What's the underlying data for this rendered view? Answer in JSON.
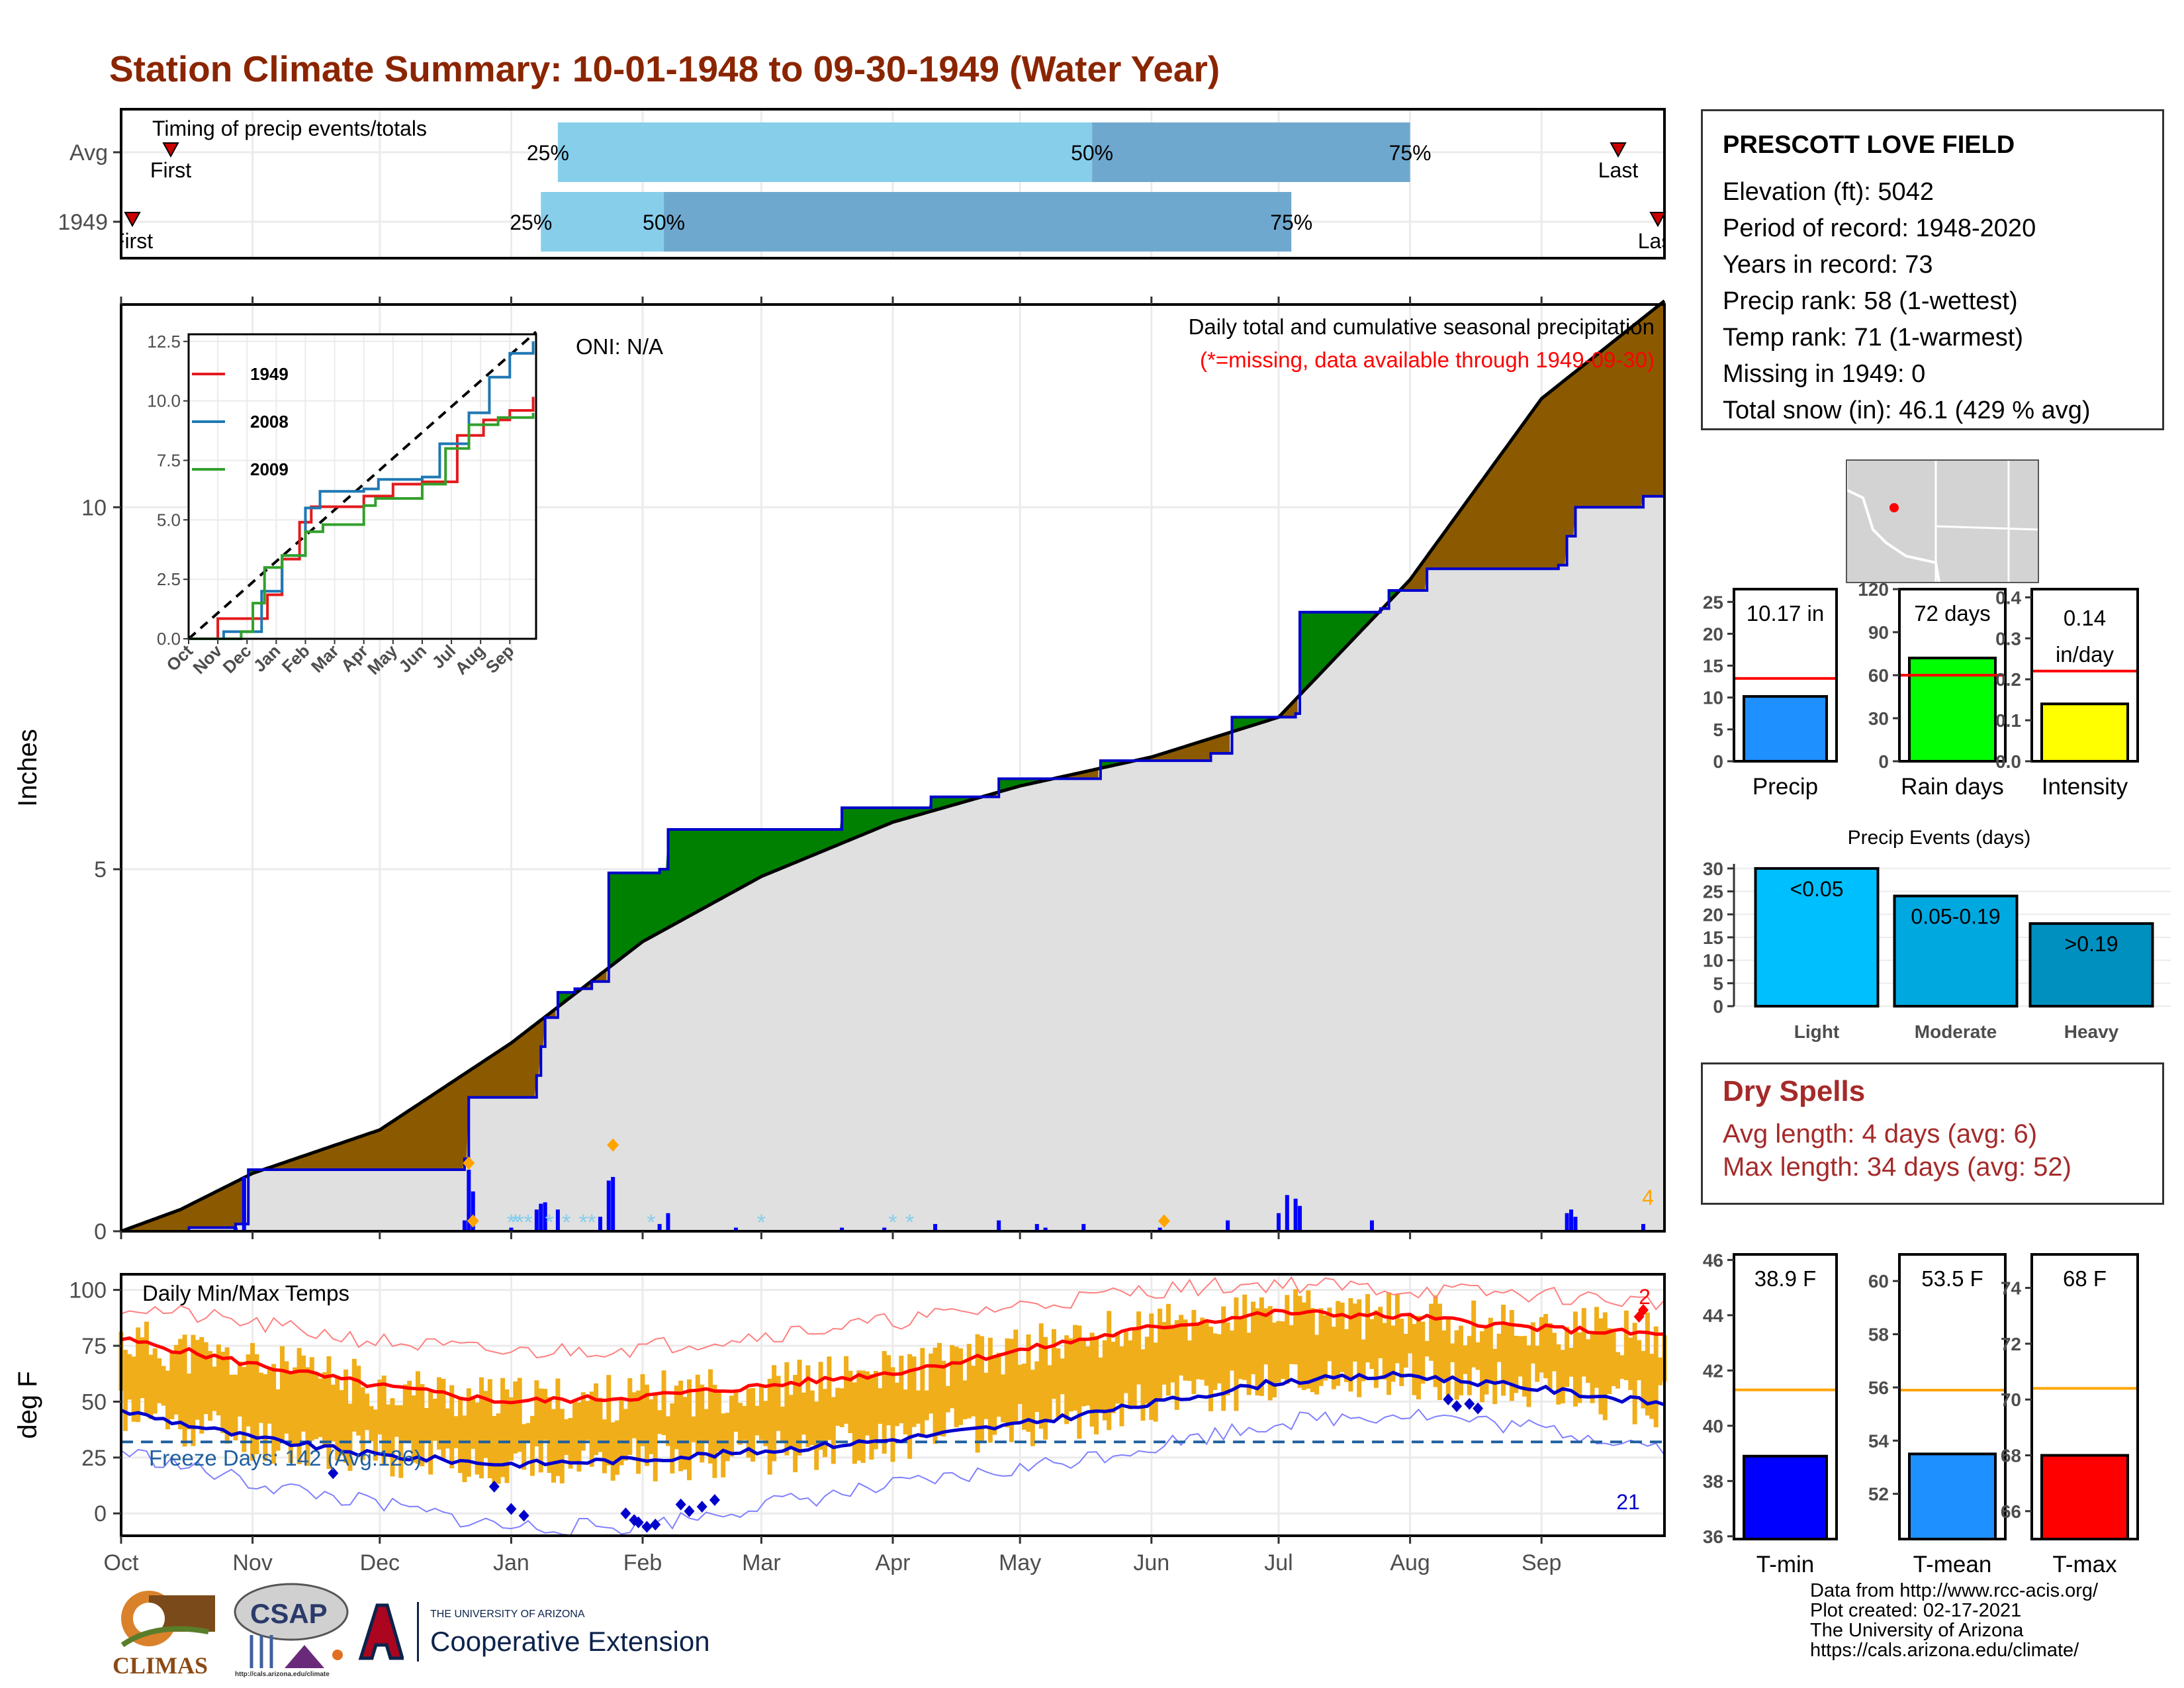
{
  "title": "Station Climate Summary: 10-01-1948 to 09-30-1949 (Water Year)",
  "station": {
    "name": "PRESCOTT LOVE FIELD",
    "lines": [
      "Elevation (ft): 5042",
      "Period of record: 1948-2020",
      "Years in record: 73",
      "Precip rank: 58 (1-wettest)",
      "Temp rank: 71 (1-warmest)",
      "Missing in 1949: 0",
      "Total snow (in): 46.1 (429 % avg)"
    ]
  },
  "dry_spells": {
    "title": "Dry Spells",
    "lines": [
      "Avg length: 4 days (avg: 6)",
      "Max length: 34 days (avg: 52)"
    ]
  },
  "footer": {
    "lines": [
      "Data from http://www.rcc-acis.org/",
      "Plot created: 02-17-2021",
      "The University of Arizona",
      "https://cals.arizona.edu/climate/"
    ]
  },
  "logos": {
    "climas": "CLIMAS",
    "csap": "CSAP",
    "csap_url": "http://cals.arizona.edu/climate",
    "ua_small": "THE UNIVERSITY OF ARIZONA",
    "ua_big": "Cooperative Extension"
  },
  "chart_data": [
    {
      "id": "timing",
      "type": "bar",
      "title": "Timing of precip events/totals",
      "rows": [
        {
          "label": "Avg",
          "first": "First",
          "last": "Last",
          "p25": "Jan 12",
          "p50": "May 18",
          "p75": "Aug 1",
          "pct_labels": [
            "25%",
            "50%",
            "75%"
          ]
        },
        {
          "label": "1949",
          "first": "First",
          "last": "Last",
          "p25": "Jan 8",
          "p50": "Feb 6",
          "p75": "Jul 4",
          "pct_labels": [
            "25%",
            "50%",
            "75%"
          ]
        }
      ],
      "colors": {
        "light": "#87ceeb",
        "dark": "#6fa8cf",
        "marker": "#cc0000"
      }
    },
    {
      "id": "cumulative-precip",
      "type": "area",
      "title": "Daily total and cumulative seasonal precipitation",
      "subtitle": "(*=missing, data available through 1949-09-30)",
      "annotation": "ONI: N/A",
      "ylabel": "Inches",
      "ylim": [
        0,
        12.8
      ],
      "yticks": [
        0,
        5,
        10
      ],
      "xlim": [
        "1948-10-01",
        "1949-09-30"
      ],
      "xticks": [
        "Oct",
        "Nov",
        "Dec",
        "Jan",
        "Feb",
        "Mar",
        "Apr",
        "May",
        "Jun",
        "Jul",
        "Aug",
        "Sep"
      ],
      "snow_days_label": "4",
      "series": [
        {
          "name": "observed cumulative",
          "color": "#0000cc",
          "points": [
            [
              "1948-10-01",
              0
            ],
            [
              "1948-10-17",
              0.05
            ],
            [
              "1948-10-28",
              0.1
            ],
            [
              "1948-10-31",
              0.85
            ],
            [
              "1948-11-15",
              0.85
            ],
            [
              "1948-12-01",
              0.85
            ],
            [
              "1948-12-20",
              0.85
            ],
            [
              "1948-12-21",
              1.0
            ],
            [
              "1948-12-22",
              1.85
            ],
            [
              "1949-01-05",
              1.85
            ],
            [
              "1949-01-07",
              2.15
            ],
            [
              "1949-01-08",
              2.55
            ],
            [
              "1949-01-09",
              2.95
            ],
            [
              "1949-01-12",
              3.3
            ],
            [
              "1949-01-16",
              3.35
            ],
            [
              "1949-01-20",
              3.45
            ],
            [
              "1949-01-24",
              4.95
            ],
            [
              "1949-02-05",
              5.0
            ],
            [
              "1949-02-07",
              5.55
            ],
            [
              "1949-02-20",
              5.55
            ],
            [
              "1949-03-01",
              5.55
            ],
            [
              "1949-03-20",
              5.85
            ],
            [
              "1949-04-10",
              6.0
            ],
            [
              "1949-04-26",
              6.25
            ],
            [
              "1949-05-20",
              6.5
            ],
            [
              "1949-06-15",
              6.6
            ],
            [
              "1949-06-20",
              7.1
            ],
            [
              "1949-07-05",
              7.15
            ],
            [
              "1949-07-06",
              8.55
            ],
            [
              "1949-07-25",
              8.6
            ],
            [
              "1949-07-27",
              8.85
            ],
            [
              "1949-08-05",
              9.15
            ],
            [
              "1949-09-05",
              9.2
            ],
            [
              "1949-09-07",
              9.6
            ],
            [
              "1949-09-09",
              10.0
            ],
            [
              "1949-09-25",
              10.15
            ],
            [
              "1949-09-30",
              10.17
            ]
          ]
        },
        {
          "name": "average cumulative",
          "color": "#000000",
          "points": [
            [
              "1948-10-01",
              0
            ],
            [
              "1948-10-15",
              0.3
            ],
            [
              "1948-11-01",
              0.8
            ],
            [
              "1948-12-01",
              1.4
            ],
            [
              "1949-01-01",
              2.6
            ],
            [
              "1949-02-01",
              4.0
            ],
            [
              "1949-03-01",
              4.9
            ],
            [
              "1949-04-01",
              5.65
            ],
            [
              "1949-05-01",
              6.15
            ],
            [
              "1949-06-01",
              6.55
            ],
            [
              "1949-07-01",
              7.1
            ],
            [
              "1949-08-01",
              9.0
            ],
            [
              "1949-09-01",
              11.5
            ],
            [
              "1949-09-30",
              12.85
            ]
          ]
        }
      ],
      "fill_colors": {
        "below_avg": "#8b5a00",
        "above_avg": "#008000",
        "base": "#e0e0e0"
      },
      "daily_bars": [
        [
          "1948-10-28",
          0.05
        ],
        [
          "1948-10-30",
          0.75
        ],
        [
          "1948-12-21",
          0.15
        ],
        [
          "1948-12-22",
          0.85
        ],
        [
          "1948-12-23",
          0.55
        ],
        [
          "1949-01-01",
          0.05
        ],
        [
          "1949-01-07",
          0.3
        ],
        [
          "1949-01-08",
          0.38
        ],
        [
          "1949-01-09",
          0.4
        ],
        [
          "1949-01-12",
          0.3
        ],
        [
          "1949-01-22",
          0.2
        ],
        [
          "1949-01-24",
          0.7
        ],
        [
          "1949-01-25",
          0.75
        ],
        [
          "1949-02-05",
          0.1
        ],
        [
          "1949-02-07",
          0.25
        ],
        [
          "1949-02-23",
          0.05
        ],
        [
          "1949-03-20",
          0.05
        ],
        [
          "1949-03-30",
          0.05
        ],
        [
          "1949-04-11",
          0.1
        ],
        [
          "1949-04-26",
          0.15
        ],
        [
          "1949-05-05",
          0.1
        ],
        [
          "1949-05-07",
          0.05
        ],
        [
          "1949-05-16",
          0.1
        ],
        [
          "1949-06-03",
          0.05
        ],
        [
          "1949-06-19",
          0.15
        ],
        [
          "1949-07-01",
          0.25
        ],
        [
          "1949-07-03",
          0.5
        ],
        [
          "1949-07-05",
          0.45
        ],
        [
          "1949-07-06",
          0.35
        ],
        [
          "1949-07-23",
          0.15
        ],
        [
          "1949-09-07",
          0.25
        ],
        [
          "1949-09-08",
          0.3
        ],
        [
          "1949-09-09",
          0.2
        ],
        [
          "1949-09-25",
          0.1
        ]
      ]
    },
    {
      "id": "inset-cumulative",
      "type": "line",
      "ylim": [
        0,
        12.8
      ],
      "yticks": [
        0.0,
        2.5,
        5.0,
        7.5,
        10.0,
        12.5
      ],
      "ytick_labels": [
        "0.0",
        "2.5",
        "5.0",
        "7.5",
        "10.0",
        "12.5"
      ],
      "xticks": [
        "Oct",
        "Nov",
        "Dec",
        "Jan",
        "Feb",
        "Mar",
        "Apr",
        "May",
        "Jun",
        "Jul",
        "Aug",
        "Sep"
      ],
      "series": [
        {
          "name": "1949",
          "color": "#e31a1c",
          "points": [
            [
              0,
              0
            ],
            [
              1,
              0.85
            ],
            [
              2,
              0.85
            ],
            [
              2.7,
              1.85
            ],
            [
              3.2,
              3.35
            ],
            [
              3.8,
              4.9
            ],
            [
              4.2,
              5.55
            ],
            [
              5,
              5.55
            ],
            [
              6,
              6.0
            ],
            [
              7,
              6.5
            ],
            [
              8,
              6.6
            ],
            [
              9.2,
              8.55
            ],
            [
              10.1,
              9.2
            ],
            [
              11,
              9.6
            ],
            [
              11.8,
              10.17
            ]
          ]
        },
        {
          "name": "2008",
          "color": "#1f78b4",
          "points": [
            [
              0,
              0
            ],
            [
              1.2,
              0.3
            ],
            [
              2,
              0.3
            ],
            [
              2.5,
              2.0
            ],
            [
              3.2,
              3.5
            ],
            [
              4,
              5.5
            ],
            [
              4.5,
              6.2
            ],
            [
              6,
              6.3
            ],
            [
              6.5,
              6.7
            ],
            [
              8,
              6.8
            ],
            [
              8.6,
              8.2
            ],
            [
              9.6,
              9.5
            ],
            [
              10.3,
              11.0
            ],
            [
              11,
              12.0
            ],
            [
              11.8,
              12.5
            ]
          ]
        },
        {
          "name": "2009",
          "color": "#33a02c",
          "points": [
            [
              0,
              0
            ],
            [
              1.8,
              0.3
            ],
            [
              2.2,
              1.5
            ],
            [
              2.6,
              3.0
            ],
            [
              3.2,
              3.5
            ],
            [
              4,
              4.5
            ],
            [
              4.6,
              4.8
            ],
            [
              6,
              5.6
            ],
            [
              6.4,
              5.9
            ],
            [
              8,
              6.5
            ],
            [
              8.8,
              8.0
            ],
            [
              9.6,
              9.0
            ],
            [
              10.6,
              9.3
            ],
            [
              11.8,
              9.5
            ]
          ]
        }
      ],
      "reference": {
        "name": "average",
        "style": "dashed",
        "color": "#000000"
      }
    },
    {
      "id": "daily-temps",
      "type": "line",
      "title": "Daily Min/Max Temps",
      "ylabel": "deg F",
      "ylim": [
        -10,
        107
      ],
      "yticks": [
        0,
        25,
        50,
        75,
        100
      ],
      "xticks": [
        "Oct",
        "Nov",
        "Dec",
        "Jan",
        "Feb",
        "Mar",
        "Apr",
        "May",
        "Jun",
        "Jul",
        "Aug",
        "Sep"
      ],
      "freeze_label": "Freeze Days: 142 (Avg:126)",
      "freeze_line": 32,
      "record_high_count": "2",
      "record_low_count": "21",
      "series": [
        {
          "name": "avg max",
          "color": "#ff0000",
          "points": [
            [
              0,
              78
            ],
            [
              1,
              67
            ],
            [
              2,
              57
            ],
            [
              3,
              50
            ],
            [
              4,
              52
            ],
            [
              5,
              57
            ],
            [
              6,
              63
            ],
            [
              7,
              73
            ],
            [
              8,
              83
            ],
            [
              9,
              90
            ],
            [
              10,
              88
            ],
            [
              11,
              83
            ],
            [
              12,
              80
            ]
          ]
        },
        {
          "name": "avg min",
          "color": "#0000cc",
          "points": [
            [
              0,
              46
            ],
            [
              1,
              34
            ],
            [
              2,
              26
            ],
            [
              3,
              22
            ],
            [
              4,
              24
            ],
            [
              5,
              28
            ],
            [
              6,
              33
            ],
            [
              7,
              40
            ],
            [
              8,
              49
            ],
            [
              9,
              59
            ],
            [
              10,
              62
            ],
            [
              11,
              56
            ],
            [
              12,
              49
            ]
          ]
        },
        {
          "name": "record max",
          "color": "#ff8080",
          "points": [
            [
              0,
              93
            ],
            [
              1,
              85
            ],
            [
              2,
              77
            ],
            [
              3,
              72
            ],
            [
              4,
              74
            ],
            [
              5,
              80
            ],
            [
              6,
              86
            ],
            [
              7,
              93
            ],
            [
              8,
              100
            ],
            [
              9,
              103
            ],
            [
              10,
              100
            ],
            [
              11,
              98
            ],
            [
              12,
              94
            ]
          ]
        },
        {
          "name": "record min",
          "color": "#8080ff",
          "points": [
            [
              0,
              28
            ],
            [
              1,
              14
            ],
            [
              2,
              4
            ],
            [
              3,
              -6
            ],
            [
              4,
              -6
            ],
            [
              5,
              4
            ],
            [
              6,
              12
            ],
            [
              7,
              20
            ],
            [
              8,
              30
            ],
            [
              9,
              41
            ],
            [
              10,
              45
            ],
            [
              11,
              38
            ],
            [
              12,
              30
            ]
          ]
        }
      ],
      "band_color": "#f0ae1a"
    },
    {
      "id": "summary-precip",
      "type": "bar",
      "categories": [
        "Precip"
      ],
      "values": [
        10.17
      ],
      "label": "10.17 in",
      "avg": 13,
      "ylim": [
        0,
        27
      ],
      "yticks": [
        0,
        5,
        10,
        15,
        20,
        25
      ],
      "color": "#1e90ff"
    },
    {
      "id": "summary-raindays",
      "type": "bar",
      "categories": [
        "Rain days"
      ],
      "values": [
        72
      ],
      "label": "72 days",
      "avg": 60,
      "ylim": [
        0,
        120
      ],
      "yticks": [
        0,
        30,
        60,
        90,
        120
      ],
      "color": "#00ff00"
    },
    {
      "id": "summary-intensity",
      "type": "bar",
      "categories": [
        "Intensity"
      ],
      "values": [
        0.14
      ],
      "label": [
        "0.14",
        "in/day"
      ],
      "avg": 0.22,
      "ylim": [
        0,
        0.42
      ],
      "yticks": [
        0.0,
        0.1,
        0.2,
        0.3,
        0.4
      ],
      "ytick_labels": [
        "0.0",
        "0.1",
        "0.2",
        "0.3",
        "0.4"
      ],
      "color": "#ffff00"
    },
    {
      "id": "precip-events",
      "type": "bar",
      "title": "Precip Events (days)",
      "categories": [
        "Light",
        "Moderate",
        "Heavy"
      ],
      "bar_labels": [
        "<0.05",
        "0.05-0.19",
        ">0.19"
      ],
      "values": [
        30,
        24,
        18
      ],
      "ylim": [
        0,
        31
      ],
      "yticks": [
        0,
        5,
        10,
        15,
        20,
        25,
        30
      ],
      "colors": [
        "#00bfff",
        "#00a8e0",
        "#0090c0"
      ]
    },
    {
      "id": "summary-tmin",
      "type": "bar",
      "categories": [
        "T-min"
      ],
      "values": [
        38.9
      ],
      "label": "38.9 F",
      "avg": 41.3,
      "ylim": [
        35.9,
        46.2
      ],
      "yticks": [
        36,
        38,
        40,
        42,
        44,
        46
      ],
      "color": "#0000ff"
    },
    {
      "id": "summary-tmean",
      "type": "bar",
      "categories": [
        "T-mean"
      ],
      "values": [
        53.5
      ],
      "label": "53.5 F",
      "avg": 55.9,
      "ylim": [
        50.3,
        61.0
      ],
      "yticks": [
        52,
        54,
        56,
        58,
        60
      ],
      "color": "#1e90ff"
    },
    {
      "id": "summary-tmax",
      "type": "bar",
      "categories": [
        "T-max"
      ],
      "values": [
        68
      ],
      "label": "68 F",
      "avg": 70.4,
      "ylim": [
        65.0,
        75.2
      ],
      "yticks": [
        66,
        68,
        70,
        72,
        74
      ],
      "color": "#ff0000"
    }
  ]
}
